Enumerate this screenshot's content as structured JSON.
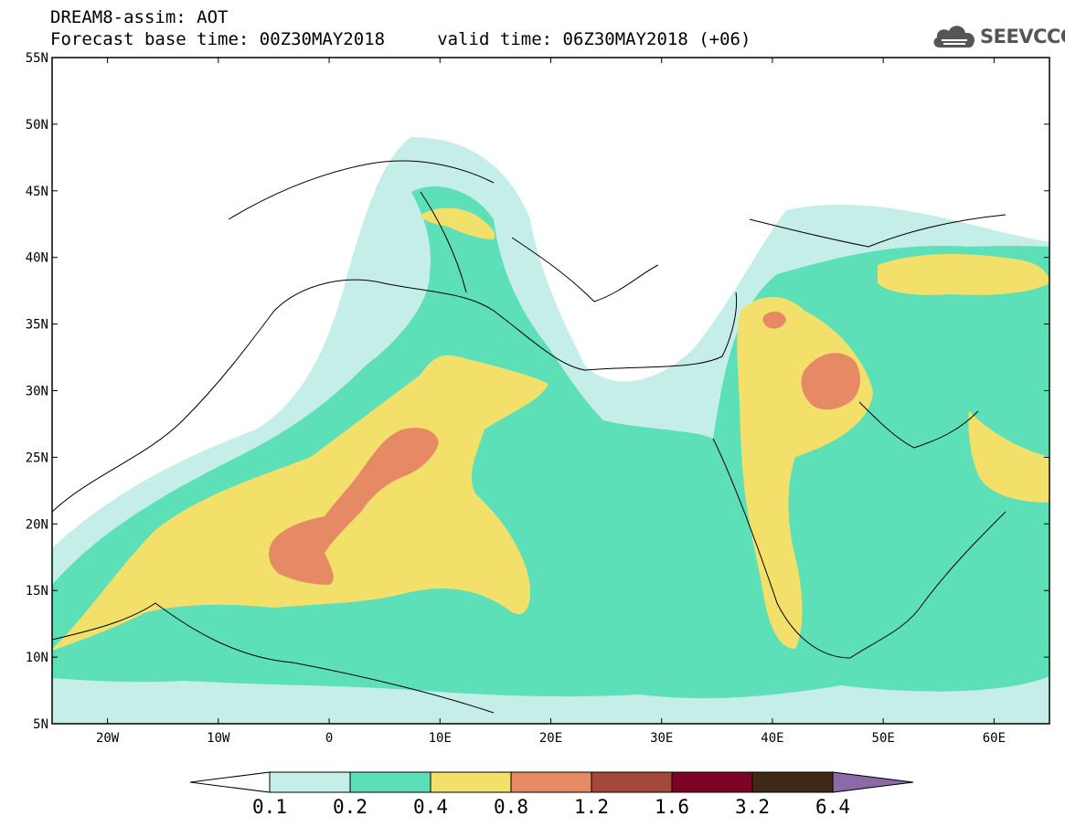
{
  "header": {
    "line1": "DREAM8-assim: AOT",
    "line2": "Forecast base time: 00Z30MAY2018     valid time: 06Z30MAY2018 (+06)"
  },
  "logo": {
    "text": "SEEVCCC",
    "icon": "cloud-icon"
  },
  "map": {
    "lat_labels": [
      "55N",
      "50N",
      "45N",
      "40N",
      "35N",
      "30N",
      "25N",
      "20N",
      "15N",
      "10N",
      "5N"
    ],
    "lon_labels": [
      "20W",
      "10W",
      "0",
      "10E",
      "20E",
      "30E",
      "40E",
      "50E",
      "60E"
    ],
    "lat_range": [
      5,
      55
    ],
    "lon_range": [
      -25,
      65
    ]
  },
  "colorbar": {
    "levels": [
      "0.1",
      "0.2",
      "0.4",
      "0.8",
      "1.2",
      "1.6",
      "3.2",
      "6.4"
    ],
    "colors": [
      "#ffffff",
      "#c4eee7",
      "#5ddfb8",
      "#f3e06b",
      "#e68a66",
      "#a4483a",
      "#7d0326",
      "#3f2a15",
      "#8b6aa7"
    ]
  }
}
